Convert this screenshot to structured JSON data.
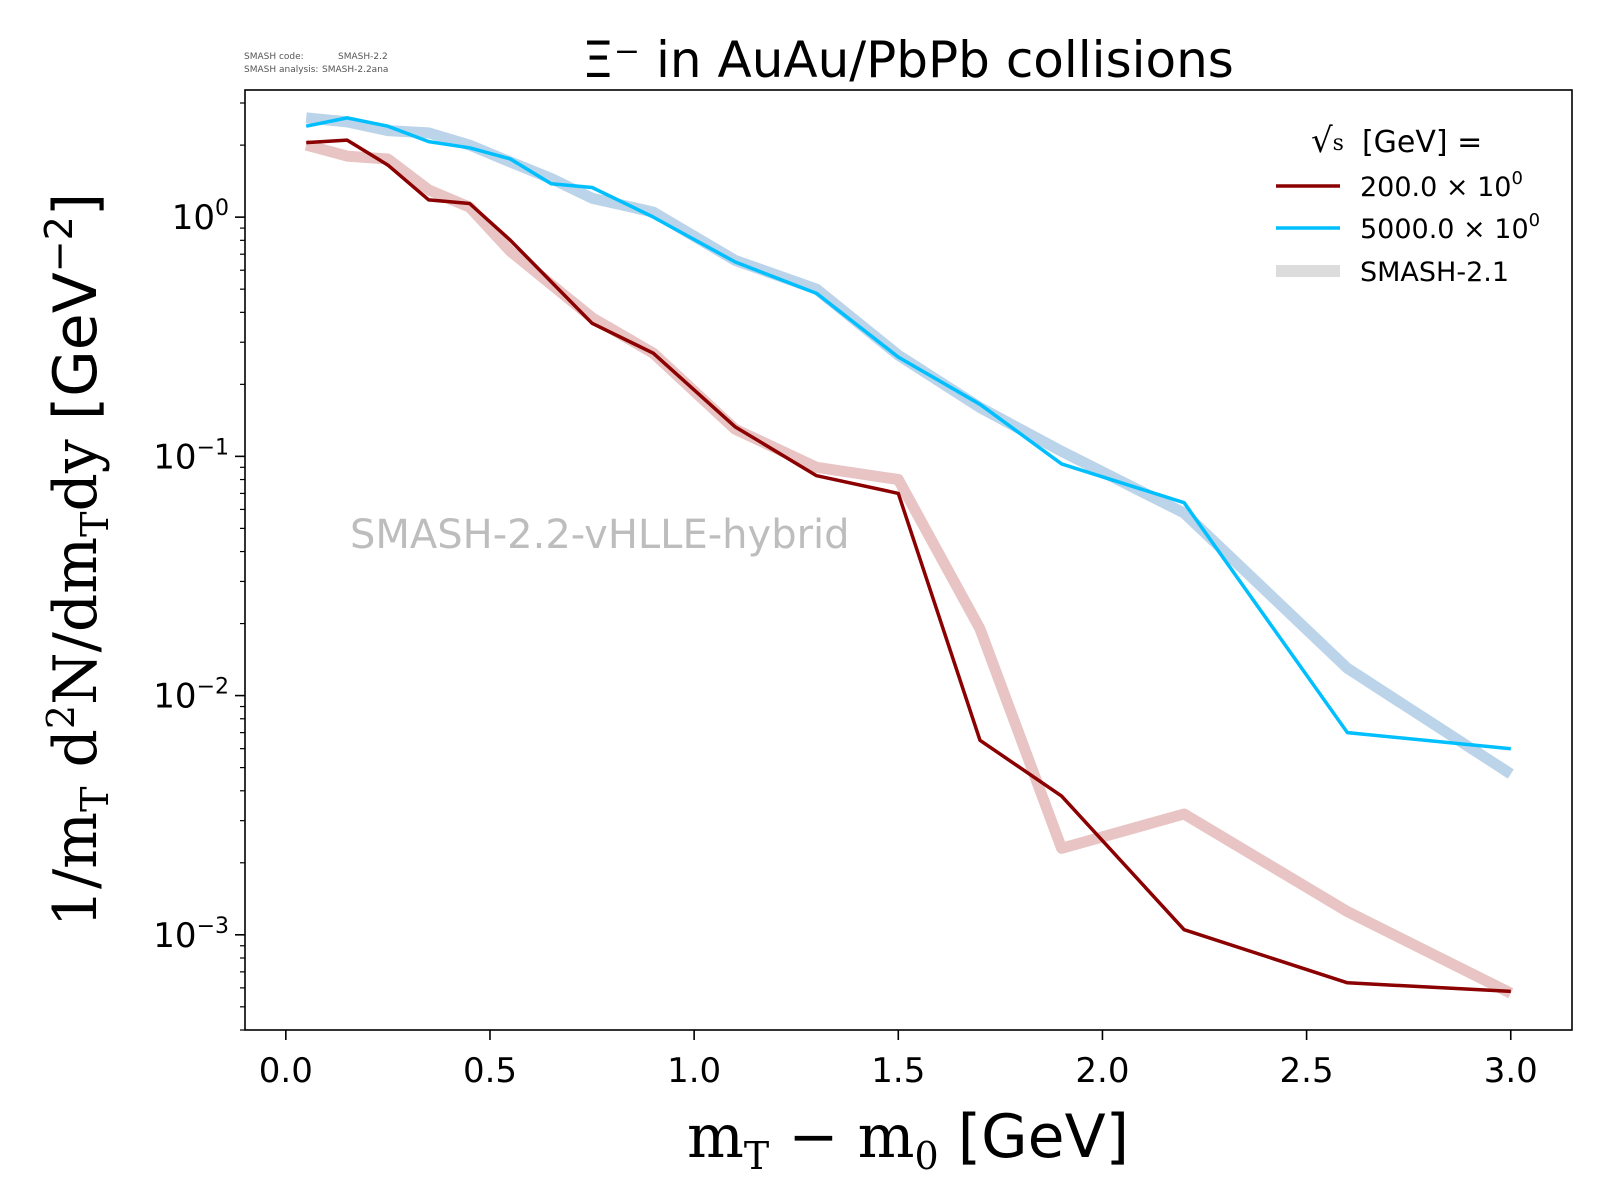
{
  "chart_data": {
    "type": "line",
    "title": "Ξ⁻ in AuAu/PbPb collisions",
    "xlabel": "m_T − m_0 [GeV]",
    "ylabel": "1/m_T d²N/dm_Tdy [GeV⁻²]",
    "xlim": [
      -0.1,
      3.15
    ],
    "ylim": [
      0.0004,
      3.4
    ],
    "yscale": "log",
    "x_ticks": [
      0.0,
      0.5,
      1.0,
      1.5,
      2.0,
      2.5,
      3.0
    ],
    "x_tick_labels": [
      "0.0",
      "0.5",
      "1.0",
      "1.5",
      "2.0",
      "2.5",
      "3.0"
    ],
    "y_ticks": [
      {
        "value": 1,
        "base": "10",
        "exp": "0"
      },
      {
        "value": 0.1,
        "base": "10",
        "exp": "−1"
      },
      {
        "value": 0.01,
        "base": "10",
        "exp": "−2"
      },
      {
        "value": 0.001,
        "base": "10",
        "exp": "−3"
      }
    ],
    "grid": false,
    "legend": {
      "title": "√s [GeV] =",
      "title_root": "s",
      "title_units": "[GeV] =",
      "placement": "top-right",
      "entries": [
        {
          "label_main": "200.0 × 10",
          "label_exp": "0",
          "color": "#8b0000"
        },
        {
          "label_main": "5000.0 × 10",
          "label_exp": "0",
          "color": "#00bfff"
        },
        {
          "label_main": "SMASH-2.1",
          "label_exp": "",
          "color": "#dcdcdc"
        }
      ]
    },
    "series": [
      {
        "name": "200.0 × 10^0",
        "color": "#8b0000",
        "style": "thin",
        "x": [
          0.05,
          0.15,
          0.25,
          0.35,
          0.45,
          0.55,
          0.75,
          0.9,
          1.1,
          1.3,
          1.5,
          1.7,
          1.9,
          2.2,
          2.6,
          3.0
        ],
        "y": [
          2.05,
          2.1,
          1.65,
          1.18,
          1.14,
          0.8,
          0.36,
          0.27,
          0.133,
          0.083,
          0.07,
          0.0065,
          0.0038,
          0.00105,
          0.00063,
          0.00058
        ]
      },
      {
        "name": "5000.0 × 10^0",
        "color": "#00bfff",
        "style": "thin",
        "x": [
          0.05,
          0.15,
          0.25,
          0.35,
          0.45,
          0.55,
          0.65,
          0.75,
          0.9,
          1.1,
          1.3,
          1.5,
          1.7,
          1.9,
          2.2,
          2.6,
          3.0
        ],
        "y": [
          2.4,
          2.6,
          2.4,
          2.07,
          1.95,
          1.75,
          1.38,
          1.33,
          1.0,
          0.65,
          0.48,
          0.26,
          0.165,
          0.093,
          0.064,
          0.007,
          0.006
        ]
      },
      {
        "name": "SMASH-2.1",
        "color": "#e8c4c4",
        "style": "thick",
        "x": [
          0.05,
          0.15,
          0.25,
          0.35,
          0.45,
          0.55,
          0.75,
          0.9,
          1.1,
          1.3,
          1.5,
          1.7,
          1.9,
          2.2,
          2.6,
          3.0
        ],
        "y": [
          2.0,
          1.8,
          1.75,
          1.3,
          1.1,
          0.72,
          0.38,
          0.27,
          0.13,
          0.09,
          0.08,
          0.019,
          0.0023,
          0.0032,
          0.00125,
          0.00057
        ]
      },
      {
        "name": "SMASH-2.1",
        "color": "#bcd4ea",
        "style": "thick",
        "x": [
          0.05,
          0.15,
          0.25,
          0.35,
          0.45,
          0.55,
          0.65,
          0.75,
          0.9,
          1.1,
          1.3,
          1.5,
          1.7,
          1.9,
          2.2,
          2.6,
          3.0
        ],
        "y": [
          2.6,
          2.5,
          2.3,
          2.25,
          2.0,
          1.7,
          1.45,
          1.2,
          1.05,
          0.66,
          0.5,
          0.265,
          0.16,
          0.105,
          0.058,
          0.013,
          0.0047
        ]
      }
    ],
    "annotations": {
      "watermark": "SMASH-2.2-vHLLE-hybrid",
      "code_label": "SMASH code:",
      "code_value": "SMASH-2.2",
      "analysis_label": "SMASH analysis:",
      "analysis_value": "SMASH-2.2ana"
    }
  }
}
